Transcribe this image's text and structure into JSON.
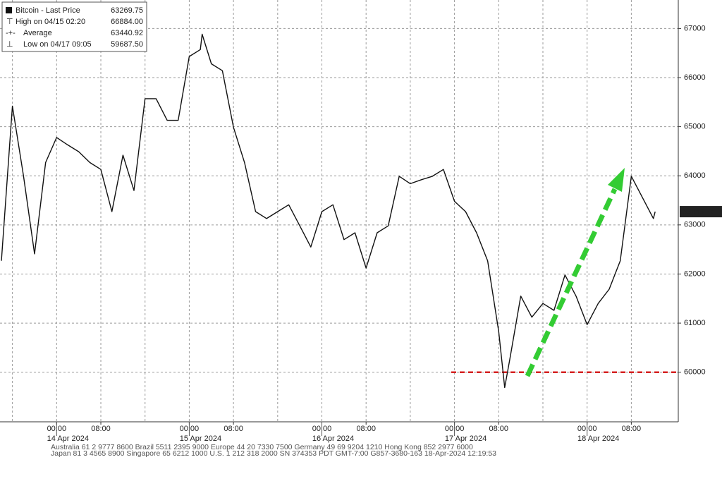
{
  "chart_data": {
    "type": "line",
    "series": [
      {
        "name": "Bitcoin - Last Price",
        "color": "#111111",
        "x": [
          "2024-04-13 14:00",
          "2024-04-13 16:00",
          "2024-04-13 18:00",
          "2024-04-13 20:00",
          "2024-04-13 22:00",
          "2024-04-14 00:00",
          "2024-04-14 02:00",
          "2024-04-14 04:00",
          "2024-04-14 06:00",
          "2024-04-14 08:00",
          "2024-04-14 10:00",
          "2024-04-14 12:00",
          "2024-04-14 14:00",
          "2024-04-14 16:00",
          "2024-04-14 18:00",
          "2024-04-14 20:00",
          "2024-04-14 22:00",
          "2024-04-15 00:00",
          "2024-04-15 02:00",
          "2024-04-15 02:20",
          "2024-04-15 04:00",
          "2024-04-15 06:00",
          "2024-04-15 08:00",
          "2024-04-15 10:00",
          "2024-04-15 12:00",
          "2024-04-15 14:00",
          "2024-04-15 16:00",
          "2024-04-15 18:00",
          "2024-04-15 20:00",
          "2024-04-15 22:00",
          "2024-04-16 00:00",
          "2024-04-16 02:00",
          "2024-04-16 04:00",
          "2024-04-16 06:00",
          "2024-04-16 08:00",
          "2024-04-16 10:00",
          "2024-04-16 12:00",
          "2024-04-16 14:00",
          "2024-04-16 16:00",
          "2024-04-16 18:00",
          "2024-04-16 20:00",
          "2024-04-16 22:00",
          "2024-04-17 00:00",
          "2024-04-17 02:00",
          "2024-04-17 04:00",
          "2024-04-17 06:00",
          "2024-04-17 08:00",
          "2024-04-17 09:05",
          "2024-04-17 10:00",
          "2024-04-17 12:00",
          "2024-04-17 14:00",
          "2024-04-17 16:00",
          "2024-04-17 18:00",
          "2024-04-17 20:00",
          "2024-04-17 22:00",
          "2024-04-18 00:00",
          "2024-04-18 02:00",
          "2024-04-18 04:00",
          "2024-04-18 06:00",
          "2024-04-18 08:00",
          "2024-04-18 10:00",
          "2024-04-18 12:00",
          "2024-04-18 12:19"
        ],
        "values": [
          62270,
          65420,
          64000,
          62410,
          64270,
          64780,
          64630,
          64490,
          64270,
          64130,
          63270,
          64420,
          63700,
          65570,
          65570,
          65130,
          65130,
          66430,
          66570,
          66884,
          66280,
          66140,
          64990,
          64270,
          63270,
          63130,
          63270,
          63410,
          62980,
          62550,
          63270,
          63410,
          62700,
          62840,
          62120,
          62840,
          62980,
          63990,
          63840,
          63920,
          63990,
          64130,
          63480,
          63270,
          62840,
          62270,
          60830,
          59687.5,
          60260,
          61550,
          61120,
          61400,
          61260,
          61980,
          61550,
          60970,
          61400,
          61690,
          62270,
          63990,
          63560,
          63130,
          63269.75
        ]
      }
    ],
    "legend_stats": [
      {
        "label": "High on 04/15 02:20",
        "value": "66884.00"
      },
      {
        "label": "Average",
        "value": "63440.92"
      },
      {
        "label": "Low on 04/17 09:05",
        "value": "59687.50"
      }
    ],
    "xlim": [
      "2024-04-13 13:45",
      "2024-04-18 16:30"
    ],
    "xticks": [
      {
        "value": "2024-04-14 00:00",
        "label": "00:00"
      },
      {
        "value": "2024-04-14 08:00",
        "label": "08:00"
      },
      {
        "value": "2024-04-15 00:00",
        "label": "00:00"
      },
      {
        "value": "2024-04-15 08:00",
        "label": "08:00"
      },
      {
        "value": "2024-04-16 00:00",
        "label": "00:00"
      },
      {
        "value": "2024-04-16 08:00",
        "label": "08:00"
      },
      {
        "value": "2024-04-17 00:00",
        "label": "00:00"
      },
      {
        "value": "2024-04-17 08:00",
        "label": "08:00"
      },
      {
        "value": "2024-04-18 00:00",
        "label": "00:00"
      },
      {
        "value": "2024-04-18 08:00",
        "label": "08:00"
      }
    ],
    "xgrid_minor": [
      "2024-04-13 16:00",
      "2024-04-14 16:00",
      "2024-04-15 16:00",
      "2024-04-16 16:00",
      "2024-04-17 16:00"
    ],
    "day_labels": [
      {
        "value": "2024-04-14 00:00",
        "label": "14 Apr 2024"
      },
      {
        "value": "2024-04-15 00:00",
        "label": "15 Apr 2024"
      },
      {
        "value": "2024-04-16 00:00",
        "label": "16 Apr 2024"
      },
      {
        "value": "2024-04-17 00:00",
        "label": "17 Apr 2024"
      },
      {
        "value": "2024-04-18 00:00",
        "label": "18 Apr 2024"
      }
    ],
    "ylim": [
      58990,
      67580
    ],
    "yticks": [
      60000,
      61000,
      62000,
      63000,
      64000,
      65000,
      66000,
      67000
    ],
    "grid": true,
    "reference_line": {
      "value": 60000,
      "color": "#d42020"
    },
    "footer": [
      "Australia 61 2 9777 8600 Brazil 5511 2395 9000 Europe 44 20 7330 7500 Germany 49 69 9204 1210 Hong Kong 852 2977 6000",
      "Japan 81 3 4565 8900 Singapore 65 6212 1000 U.S. 1 212 318 2000 SN 374353 PDT GMT-7:00 G857-3680-163 18-Apr-2024 12:19:53"
    ]
  }
}
